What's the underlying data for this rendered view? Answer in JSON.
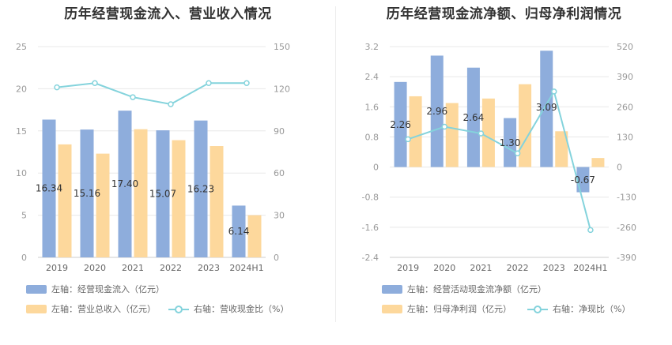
{
  "colors": {
    "blue": "#8eaddc",
    "orange": "#fdd89c",
    "line": "#84d3dc",
    "grid": "#e8e8e8",
    "axis_text": "#999999",
    "label_text": "#333333"
  },
  "chart_data": [
    {
      "type": "bar",
      "title": "历年经营现金流入、营业收入情况",
      "categories": [
        "2019",
        "2020",
        "2021",
        "2022",
        "2023",
        "2024H1"
      ],
      "y_left": {
        "ticks": [
          "0",
          "5",
          "10",
          "15",
          "20",
          "25"
        ],
        "ylim": [
          0,
          25
        ]
      },
      "y_right": {
        "ticks": [
          "0",
          "30",
          "60",
          "90",
          "120",
          "150"
        ],
        "ylim": [
          0,
          150
        ]
      },
      "series": [
        {
          "name": "左轴：经营现金流入（亿元）",
          "axis": "left",
          "kind": "bar",
          "color": "blue",
          "values": [
            16.34,
            15.16,
            17.4,
            15.07,
            16.23,
            6.14
          ],
          "labels": [
            "16.34",
            "15.16",
            "17.40",
            "15.07",
            "16.23",
            "6.14"
          ]
        },
        {
          "name": "左轴：营业总收入（亿元）",
          "axis": "left",
          "kind": "bar",
          "color": "orange",
          "values": [
            13.4,
            12.3,
            15.2,
            13.9,
            13.2,
            5.0
          ]
        },
        {
          "name": "右轴：营收现金比（%）",
          "axis": "right",
          "kind": "line",
          "color": "line",
          "values": [
            121,
            124,
            114,
            109,
            124,
            124
          ]
        }
      ],
      "grid": true,
      "legend_position": "bottom"
    },
    {
      "type": "bar",
      "title": "历年经营现金流净额、归母净利润情况",
      "categories": [
        "2019",
        "2020",
        "2021",
        "2022",
        "2023",
        "2024H1"
      ],
      "y_left": {
        "ticks": [
          "-2.4",
          "-1.6",
          "-0.8",
          "0",
          "0.8",
          "1.6",
          "2.4",
          "3.2"
        ],
        "ylim": [
          -2.4,
          3.2
        ]
      },
      "y_right": {
        "ticks": [
          "-390",
          "-260",
          "-130",
          "0",
          "130",
          "260",
          "390",
          "520"
        ],
        "ylim": [
          -390,
          520
        ]
      },
      "series": [
        {
          "name": "左轴：经营活动现金流净额（亿元）",
          "axis": "left",
          "kind": "bar",
          "color": "blue",
          "values": [
            2.26,
            2.96,
            2.64,
            1.3,
            3.09,
            -0.67
          ],
          "labels": [
            "2.26",
            "2.96",
            "2.64",
            "1.30",
            "3.09",
            "-0.67"
          ]
        },
        {
          "name": "左轴：归母净利润（亿元）",
          "axis": "left",
          "kind": "bar",
          "color": "orange",
          "values": [
            1.88,
            1.7,
            1.82,
            2.2,
            0.95,
            0.24
          ]
        },
        {
          "name": "右轴：净现比（%）",
          "axis": "right",
          "kind": "line",
          "color": "line",
          "values": [
            120,
            174,
            145,
            59,
            326,
            -272
          ]
        }
      ],
      "grid": true,
      "legend_position": "bottom"
    }
  ]
}
